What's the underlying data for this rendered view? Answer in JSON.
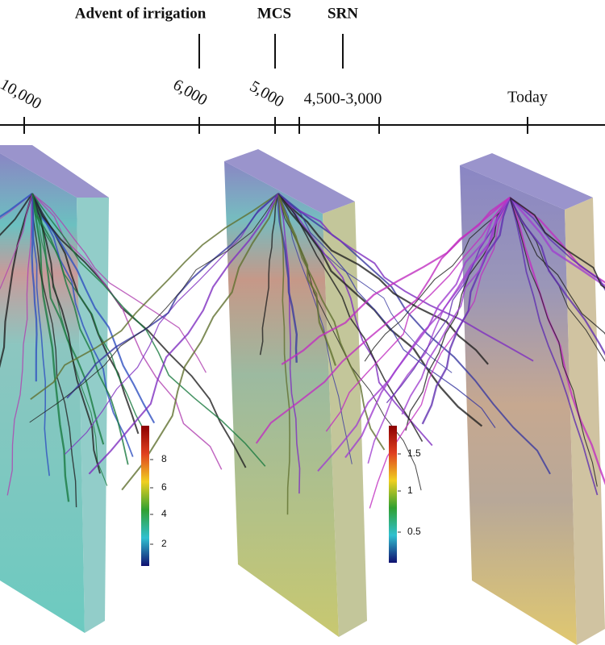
{
  "timeline": {
    "events": [
      {
        "label": "Advent of irrigation"
      },
      {
        "label": "MCS"
      },
      {
        "label": "SRN"
      }
    ],
    "ticks": [
      "10,000",
      "6,000",
      "5,000",
      "4,500-3,000",
      "Today"
    ]
  },
  "colorbars": [
    {
      "ticks": [
        "8",
        "6",
        "4",
        "2"
      ]
    },
    {
      "ticks": [
        "1.5",
        "1",
        "0.5"
      ]
    }
  ]
}
